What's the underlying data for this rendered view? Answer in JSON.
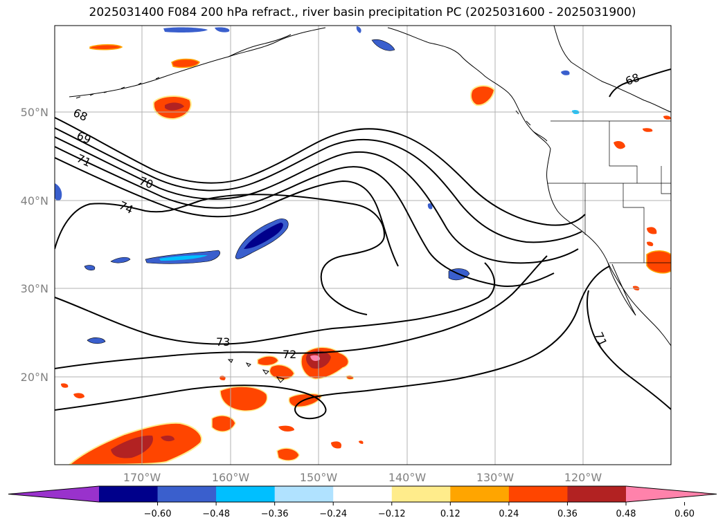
{
  "title": "2025031400 F084 200 hPa refract., river basin precipitation PC (2025031600 - 2025031900)",
  "latitude_labels": [
    "50°N",
    "40°N",
    "30°N",
    "20°N"
  ],
  "longitude_labels": [
    "170°W",
    "160°W",
    "150°W",
    "140°W",
    "130°W",
    "120°W"
  ],
  "contour_labels": [
    "68",
    "69",
    "71",
    "70",
    "74",
    "73",
    "72",
    "71",
    "68"
  ],
  "colorbar": {
    "colors": [
      "#9932cc",
      "#00008b",
      "#3a5fcd",
      "#00bfff",
      "#b0e2ff",
      "#ffffff",
      "#ffec8b",
      "#ffa500",
      "#ff4500",
      "#b22222",
      "#ff82ab"
    ],
    "tick_labels": [
      "−0.60",
      "−0.48",
      "−0.36",
      "−0.24",
      "−0.12",
      "0.12",
      "0.24",
      "0.36",
      "0.48",
      "0.60"
    ]
  }
}
